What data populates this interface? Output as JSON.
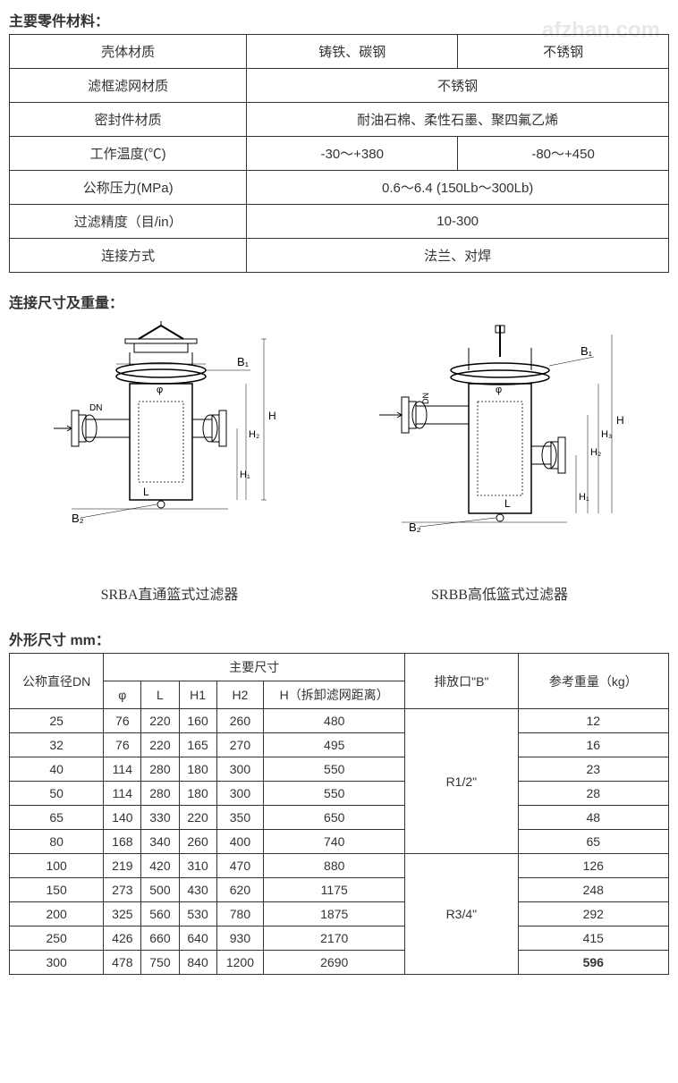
{
  "watermark": "afzhan.com",
  "section1_title": "主要零件材料：",
  "materials_table": {
    "rows": [
      {
        "label": "壳体材质",
        "col1": "铸铁、碳钢",
        "col2": "不锈钢",
        "merged": false
      },
      {
        "label": "滤框滤网材质",
        "value": "不锈钢",
        "merged": true
      },
      {
        "label": "密封件材质",
        "value": "耐油石棉、柔性石墨、聚四氟乙烯",
        "merged": true
      },
      {
        "label": "工作温度(℃)",
        "col1": "-30～+380",
        "col2": "-80～+450",
        "merged": false
      },
      {
        "label": "公称压力(MPa)",
        "value": "0.6～6.4 (150Lb～300Lb)",
        "merged": true
      },
      {
        "label": "过滤精度（目/in）",
        "value": "10-300",
        "merged": true
      },
      {
        "label": "连接方式",
        "value": "法兰、对焊",
        "merged": true
      }
    ]
  },
  "section2_title": "连接尺寸及重量：",
  "diagram_labels": {
    "left": "SRBA直通篮式过滤器",
    "right": "SRBB高低篮式过滤器",
    "b1": "B₁",
    "b2": "B₂",
    "phi": "φ",
    "dn": "DN",
    "h": "H",
    "h1": "H₁",
    "h2": "H₂",
    "h3": "H₃",
    "l": "L"
  },
  "section3_title": "外形尺寸 mm：",
  "dims_table": {
    "header_dn": "公称直径DN",
    "header_main": "主要尺寸",
    "header_b": "排放口\"B\"",
    "header_weight": "参考重量（kg）",
    "sub_phi": "φ",
    "sub_l": "L",
    "sub_h1": "H1",
    "sub_h2": "H2",
    "sub_h": "H（拆卸滤网距离）",
    "rows": [
      {
        "dn": "25",
        "phi": "76",
        "l": "220",
        "h1": "160",
        "h2": "260",
        "h": "480",
        "wt": "12"
      },
      {
        "dn": "32",
        "phi": "76",
        "l": "220",
        "h1": "165",
        "h2": "270",
        "h": "495",
        "wt": "16"
      },
      {
        "dn": "40",
        "phi": "114",
        "l": "280",
        "h1": "180",
        "h2": "300",
        "h": "550",
        "wt": "23"
      },
      {
        "dn": "50",
        "phi": "114",
        "l": "280",
        "h1": "180",
        "h2": "300",
        "h": "550",
        "wt": "28"
      },
      {
        "dn": "65",
        "phi": "140",
        "l": "330",
        "h1": "220",
        "h2": "350",
        "h": "650",
        "wt": "48"
      },
      {
        "dn": "80",
        "phi": "168",
        "l": "340",
        "h1": "260",
        "h2": "400",
        "h": "740",
        "wt": "65"
      },
      {
        "dn": "100",
        "phi": "219",
        "l": "420",
        "h1": "310",
        "h2": "470",
        "h": "880",
        "wt": "126"
      },
      {
        "dn": "150",
        "phi": "273",
        "l": "500",
        "h1": "430",
        "h2": "620",
        "h": "1175",
        "wt": "248"
      },
      {
        "dn": "200",
        "phi": "325",
        "l": "560",
        "h1": "530",
        "h2": "780",
        "h": "1875",
        "wt": "292"
      },
      {
        "dn": "250",
        "phi": "426",
        "l": "660",
        "h1": "640",
        "h2": "930",
        "h": "2170",
        "wt": "415"
      },
      {
        "dn": "300",
        "phi": "478",
        "l": "750",
        "h1": "840",
        "h2": "1200",
        "h": "2690",
        "wt": "596",
        "bold": true
      }
    ],
    "b1": "R1/2\"",
    "b2": "R3/4\""
  }
}
